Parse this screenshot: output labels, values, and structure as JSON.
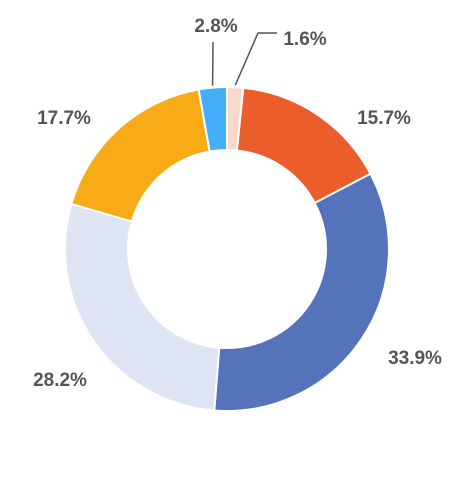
{
  "chart_data": {
    "type": "pie",
    "variant": "donut",
    "legend": "none",
    "slices": [
      {
        "value": 1.6,
        "label": "1.6%",
        "color": "#F8D7CC"
      },
      {
        "value": 15.7,
        "label": "15.7%",
        "color": "#EB5E2C"
      },
      {
        "value": 33.9,
        "label": "33.9%",
        "color": "#5473BB"
      },
      {
        "value": 28.2,
        "label": "28.2%",
        "color": "#DEE4F3"
      },
      {
        "value": 17.7,
        "label": "17.7%",
        "color": "#F8AA17"
      },
      {
        "value": 2.8,
        "label": "2.8%",
        "color": "#43AEFA"
      }
    ],
    "start_direction": "clockwise from top"
  }
}
